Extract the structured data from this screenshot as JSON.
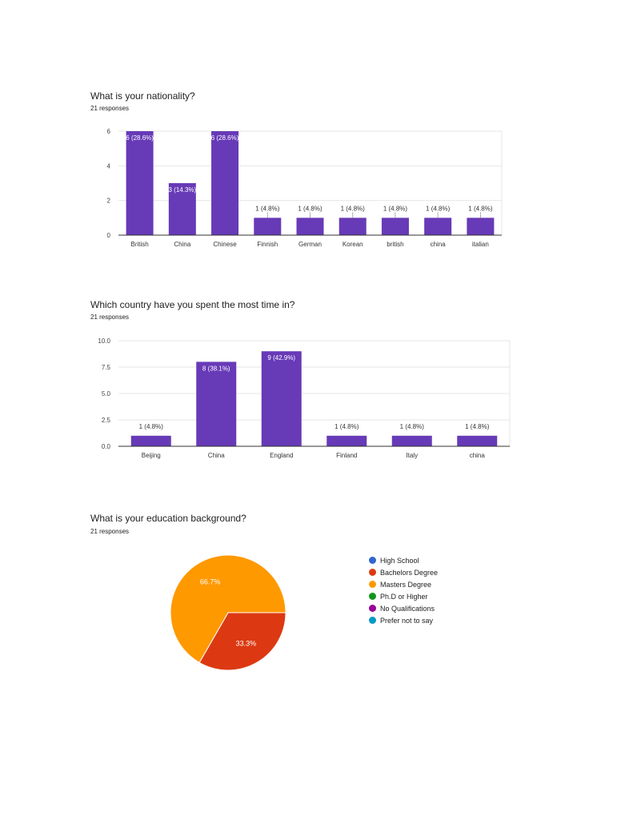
{
  "chart_data": [
    {
      "type": "bar",
      "title": "What is your nationality?",
      "subtitle": "21 responses",
      "categories": [
        "British",
        "China",
        "Chinese",
        "Finnish",
        "German",
        "Korean",
        "british",
        "china",
        "italian"
      ],
      "values": [
        6,
        3,
        6,
        1,
        1,
        1,
        1,
        1,
        1
      ],
      "data_labels": [
        "6 (28.6%)",
        "3 (14.3%)",
        "6 (28.6%)",
        "1 (4.8%)",
        "1 (4.8%)",
        "1 (4.8%)",
        "1 (4.8%)",
        "1 (4.8%)",
        "1 (4.8%)"
      ],
      "yticks": [
        "0",
        "2",
        "4",
        "6"
      ],
      "ylim": [
        0,
        6
      ],
      "color": "#673ab7",
      "grid": true
    },
    {
      "type": "bar",
      "title": "Which country have you spent the most time in?",
      "subtitle": "21 responses",
      "categories": [
        "Beijing",
        "China",
        "England",
        "Finland",
        "Italy",
        "china"
      ],
      "values": [
        1,
        8,
        9,
        1,
        1,
        1
      ],
      "data_labels": [
        "1 (4.8%)",
        "8 (38.1%)",
        "9 (42.9%)",
        "1 (4.8%)",
        "1 (4.8%)",
        "1 (4.8%)"
      ],
      "yticks": [
        "0.0",
        "2.5",
        "5.0",
        "7.5",
        "10.0"
      ],
      "ylim": [
        0,
        10
      ],
      "color": "#673ab7",
      "grid": true
    },
    {
      "type": "pie",
      "title": "What is your education background?",
      "subtitle": "21 responses",
      "legend_position": "right",
      "slices": [
        {
          "label": "High School",
          "value": 0,
          "color": "#3366cc",
          "pct_label": ""
        },
        {
          "label": "Bachelors Degree",
          "value": 33.3,
          "color": "#dc3912",
          "pct_label": "33.3%"
        },
        {
          "label": "Masters Degree",
          "value": 66.7,
          "color": "#ff9900",
          "pct_label": "66.7%"
        },
        {
          "label": "Ph.D or Higher",
          "value": 0,
          "color": "#109618",
          "pct_label": ""
        },
        {
          "label": "No Qualifications",
          "value": 0,
          "color": "#990099",
          "pct_label": ""
        },
        {
          "label": "Prefer not to say",
          "value": 0,
          "color": "#0099c6",
          "pct_label": ""
        }
      ]
    }
  ]
}
